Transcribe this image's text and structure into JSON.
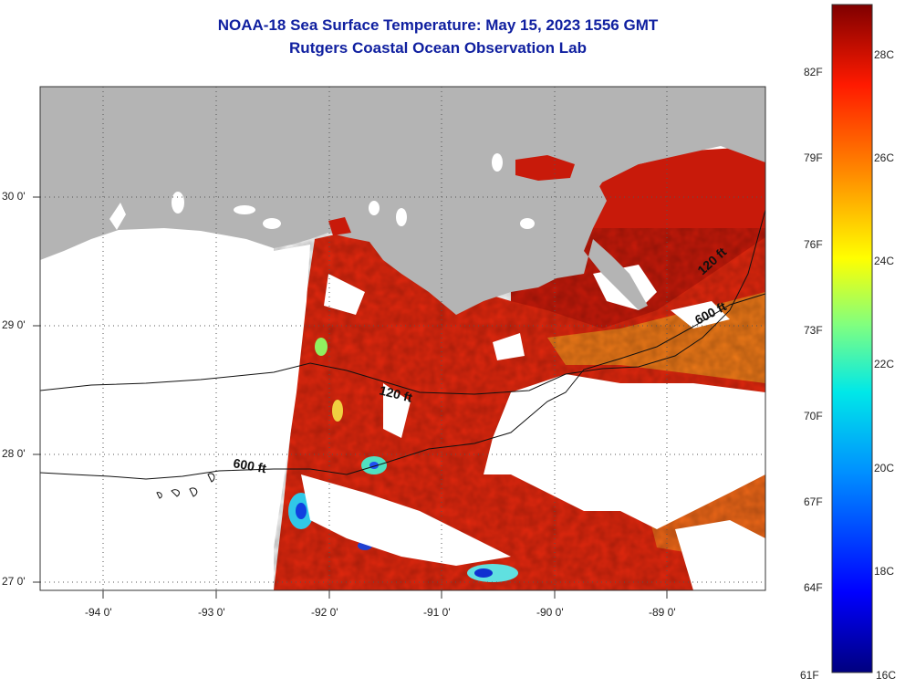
{
  "header": {
    "title_line1": "NOAA-18 Sea Surface Temperature:  May 15, 2023 1556 GMT",
    "title_line2": "Rutgers Coastal Ocean Observation Lab"
  },
  "map": {
    "lat_labels": [
      "30 0'",
      "29 0'",
      "28 0'",
      "27 0'"
    ],
    "lon_labels": [
      "-94 0'",
      "-93 0'",
      "-92 0'",
      "-91 0'",
      "-90 0'",
      "-89 0'"
    ],
    "lat_values": [
      30,
      29,
      28,
      27
    ],
    "lon_values": [
      -94,
      -93,
      -92,
      -91,
      -90,
      -89
    ],
    "contour_labels": {
      "c120_west": "120 ft",
      "c600_west": "600 ft",
      "c120_east": "120 ft",
      "c600_east": "600 ft"
    },
    "colors": {
      "land": "#b4b4b4",
      "cloud": "#ffffff",
      "sst_warm": "#e8240c",
      "sst_hot": "#c01008",
      "sst_orange": "#f06010"
    }
  },
  "colorbar": {
    "fahrenheit_labels": [
      "82F",
      "79F",
      "76F",
      "73F",
      "70F",
      "67F",
      "64F",
      "61F"
    ],
    "celsius_labels": [
      "28C",
      "26C",
      "24C",
      "22C",
      "20C",
      "18C",
      "16C"
    ],
    "stops": [
      "#00007f",
      "#0000ff",
      "#0080ff",
      "#00ffff",
      "#80ff80",
      "#ffff00",
      "#ff8000",
      "#ff0000",
      "#7f0000"
    ]
  }
}
